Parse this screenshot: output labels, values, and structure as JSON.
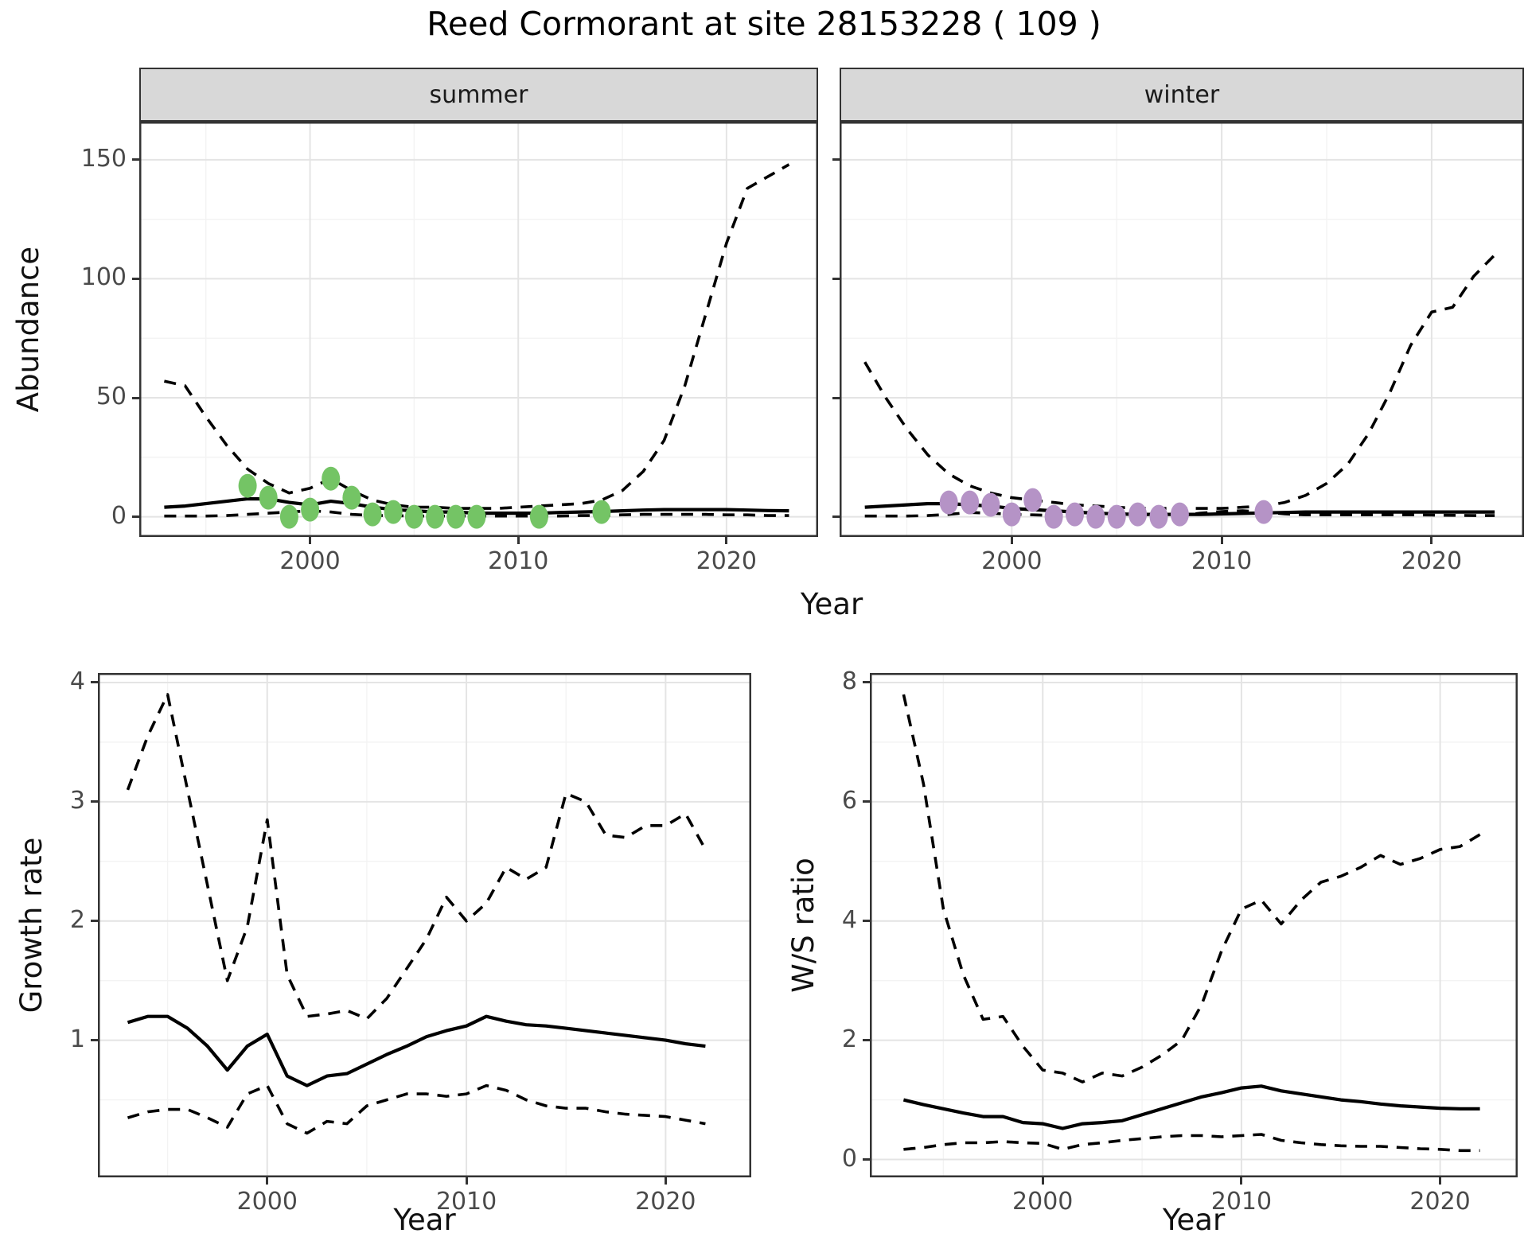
{
  "title": "Reed Cormorant at site 28153228 ( 109 )",
  "colors": {
    "summer_point": "#74c465",
    "winter_point": "#b593c6",
    "line": "#000000",
    "strip_background": "#d8d8d8",
    "grid_major": "#e4e4e4",
    "grid_minor": "#f3f3f3",
    "tick_label": "#4a4a4a",
    "panel_border": "#333333"
  },
  "chart_data": [
    {
      "id": "abundance_summer",
      "type": "line",
      "facet_label": "summer",
      "ylabel": "Abundance",
      "xlabel": "Year",
      "xlim": [
        1991.8,
        2024.4
      ],
      "ylim": [
        -8.5,
        166
      ],
      "xticks": [
        2000,
        2010,
        2020
      ],
      "xticks_minor": [
        1995,
        2005,
        2015
      ],
      "yticks": [
        0,
        50,
        100,
        150
      ],
      "yticks_minor": [
        25,
        75,
        125
      ],
      "show_ytick_labels": true,
      "grid": true,
      "legend": "none",
      "x": [
        1993,
        1994,
        1995,
        1996,
        1997,
        1998,
        1999,
        2000,
        2001,
        2002,
        2003,
        2004,
        2005,
        2006,
        2007,
        2008,
        2009,
        2010,
        2011,
        2012,
        2013,
        2014,
        2015,
        2016,
        2017,
        2018,
        2019,
        2020,
        2021,
        2022,
        2023
      ],
      "series": [
        {
          "name": "upper_ci",
          "style": "dashed",
          "values": [
            57,
            55,
            42,
            30,
            20,
            14,
            10,
            12,
            16,
            11,
            7,
            5,
            4,
            4,
            3.5,
            3.5,
            3.5,
            4,
            4.5,
            5,
            5.5,
            7,
            11,
            19,
            32,
            55,
            85,
            115,
            138,
            143,
            148
          ]
        },
        {
          "name": "median",
          "style": "solid",
          "values": [
            4,
            4.5,
            5.5,
            6.5,
            7.5,
            7.5,
            6,
            5,
            6.5,
            5.5,
            4,
            3,
            2.5,
            2,
            2,
            1.5,
            1.5,
            1.5,
            1.5,
            1.8,
            2,
            2.2,
            2.5,
            2.8,
            3,
            3,
            3,
            3,
            2.8,
            2.6,
            2.5
          ]
        },
        {
          "name": "lower_ci",
          "style": "dashed",
          "values": [
            0.3,
            0.3,
            0.3,
            0.5,
            1,
            1.5,
            2,
            2.5,
            2,
            1,
            0.5,
            0.5,
            0.3,
            0.3,
            0.3,
            0.3,
            0.3,
            0.3,
            0.3,
            0.3,
            0.5,
            0.5,
            0.8,
            1,
            1,
            1,
            1,
            0.8,
            0.8,
            0.5,
            0.5
          ]
        }
      ],
      "points": {
        "name": "observed_counts_summer",
        "color": "#74c465",
        "years": [
          1997,
          1998,
          1999,
          2000,
          2001,
          2002,
          2003,
          2004,
          2005,
          2006,
          2007,
          2008,
          2011,
          2014
        ],
        "values": [
          13,
          8,
          0,
          3,
          16,
          8,
          1,
          2,
          0,
          0,
          0,
          0,
          0,
          2
        ]
      }
    },
    {
      "id": "abundance_winter",
      "type": "line",
      "facet_label": "winter",
      "ylabel": "",
      "xlabel": "",
      "xlim": [
        1991.8,
        2024.4
      ],
      "ylim": [
        -8.5,
        166
      ],
      "xticks": [
        2000,
        2010,
        2020
      ],
      "xticks_minor": [
        1995,
        2005,
        2015
      ],
      "yticks": [
        0,
        50,
        100,
        150
      ],
      "yticks_minor": [
        25,
        75,
        125
      ],
      "show_ytick_labels": false,
      "grid": true,
      "legend": "none",
      "x": [
        1993,
        1994,
        1995,
        1996,
        1997,
        1998,
        1999,
        2000,
        2001,
        2002,
        2003,
        2004,
        2005,
        2006,
        2007,
        2008,
        2009,
        2010,
        2011,
        2012,
        2013,
        2014,
        2015,
        2016,
        2017,
        2018,
        2019,
        2020,
        2021,
        2022,
        2023
      ],
      "series": [
        {
          "name": "upper_ci",
          "style": "dashed",
          "values": [
            65,
            50,
            37,
            26,
            18,
            13,
            10,
            8,
            7,
            6,
            5,
            4.5,
            4,
            3.5,
            3.5,
            3.5,
            3.5,
            3.5,
            4,
            4.5,
            6,
            9,
            14,
            22,
            35,
            52,
            72,
            86,
            88,
            101,
            110
          ]
        },
        {
          "name": "median",
          "style": "solid",
          "values": [
            4,
            4.5,
            5,
            5.5,
            5.5,
            5,
            4.5,
            3.5,
            3,
            2.5,
            2,
            1.5,
            1.2,
            1,
            1,
            1,
            1,
            1.2,
            1.4,
            1.6,
            1.8,
            2,
            2,
            2,
            2,
            2,
            2,
            2,
            2,
            2,
            2
          ]
        },
        {
          "name": "lower_ci",
          "style": "dashed",
          "values": [
            0.3,
            0.3,
            0.3,
            0.5,
            1,
            1.8,
            1.5,
            1,
            0.8,
            0.5,
            0.3,
            0.3,
            0.3,
            0.3,
            0.3,
            0.5,
            1.5,
            2.2,
            2.5,
            2,
            1.2,
            0.8,
            0.8,
            0.8,
            0.8,
            0.8,
            0.8,
            0.7,
            0.6,
            0.5,
            0.5
          ]
        }
      ],
      "points": {
        "name": "observed_counts_winter",
        "color": "#b593c6",
        "years": [
          1997,
          1998,
          1999,
          2000,
          2001,
          2002,
          2003,
          2004,
          2005,
          2006,
          2007,
          2008,
          2012
        ],
        "values": [
          6,
          6,
          5,
          1,
          7,
          0,
          1,
          0,
          0,
          1,
          0,
          1,
          2
        ]
      }
    },
    {
      "id": "growth_rate",
      "type": "line",
      "facet_label": "",
      "ylabel": "Growth rate",
      "xlabel": "Year",
      "xlim": [
        1991.5,
        2024.3
      ],
      "ylim": [
        -0.15,
        4.08
      ],
      "xticks": [
        2000,
        2010,
        2020
      ],
      "xticks_minor": [
        1995,
        2005,
        2015
      ],
      "yticks": [
        1,
        2,
        3,
        4
      ],
      "yticks_minor": [
        0.5,
        1.5,
        2.5,
        3.5
      ],
      "show_ytick_labels": true,
      "grid": true,
      "legend": "none",
      "x": [
        1993,
        1994,
        1995,
        1996,
        1997,
        1998,
        1999,
        2000,
        2001,
        2002,
        2003,
        2004,
        2005,
        2006,
        2007,
        2008,
        2009,
        2010,
        2011,
        2012,
        2013,
        2014,
        2015,
        2016,
        2017,
        2018,
        2019,
        2020,
        2021,
        2022
      ],
      "series": [
        {
          "name": "upper_ci",
          "style": "dashed",
          "values": [
            3.1,
            3.55,
            3.9,
            3.1,
            2.3,
            1.5,
            1.95,
            2.85,
            1.55,
            1.2,
            1.22,
            1.25,
            1.18,
            1.35,
            1.6,
            1.85,
            2.2,
            2.0,
            2.15,
            2.45,
            2.35,
            2.45,
            3.07,
            3.0,
            2.72,
            2.7,
            2.8,
            2.8,
            2.9,
            2.6
          ]
        },
        {
          "name": "median",
          "style": "solid",
          "values": [
            1.15,
            1.2,
            1.2,
            1.1,
            0.95,
            0.75,
            0.95,
            1.05,
            0.7,
            0.62,
            0.7,
            0.72,
            0.8,
            0.88,
            0.95,
            1.03,
            1.08,
            1.12,
            1.2,
            1.16,
            1.13,
            1.12,
            1.1,
            1.08,
            1.06,
            1.04,
            1.02,
            1.0,
            0.97,
            0.95
          ]
        },
        {
          "name": "lower_ci",
          "style": "dashed",
          "values": [
            0.35,
            0.4,
            0.42,
            0.42,
            0.35,
            0.27,
            0.55,
            0.62,
            0.3,
            0.22,
            0.32,
            0.3,
            0.45,
            0.5,
            0.55,
            0.55,
            0.53,
            0.55,
            0.62,
            0.58,
            0.5,
            0.45,
            0.43,
            0.43,
            0.4,
            0.38,
            0.37,
            0.36,
            0.33,
            0.3
          ]
        }
      ]
    },
    {
      "id": "ws_ratio",
      "type": "line",
      "facet_label": "",
      "ylabel": "W/S ratio",
      "xlabel": "Year",
      "xlim": [
        1991.3,
        2023.9
      ],
      "ylim": [
        -0.3,
        8.16
      ],
      "xticks": [
        2000,
        2010,
        2020
      ],
      "xticks_minor": [
        1995,
        2005,
        2015
      ],
      "yticks": [
        0,
        2,
        4,
        6,
        8
      ],
      "yticks_minor": [
        1,
        3,
        5,
        7
      ],
      "show_ytick_labels": true,
      "grid": true,
      "legend": "none",
      "x": [
        1993,
        1994,
        1995,
        1996,
        1997,
        1998,
        1999,
        2000,
        2001,
        2002,
        2003,
        2004,
        2005,
        2006,
        2007,
        2008,
        2009,
        2010,
        2011,
        2012,
        2013,
        2014,
        2015,
        2016,
        2017,
        2018,
        2019,
        2020,
        2021,
        2022
      ],
      "series": [
        {
          "name": "upper_ci",
          "style": "dashed",
          "values": [
            7.8,
            6.3,
            4.2,
            3.1,
            2.35,
            2.4,
            1.9,
            1.5,
            1.45,
            1.3,
            1.45,
            1.4,
            1.55,
            1.75,
            2.0,
            2.6,
            3.5,
            4.2,
            4.35,
            3.95,
            4.35,
            4.65,
            4.75,
            4.9,
            5.1,
            4.95,
            5.05,
            5.2,
            5.25,
            5.45
          ]
        },
        {
          "name": "median",
          "style": "solid",
          "values": [
            1.0,
            0.92,
            0.85,
            0.78,
            0.72,
            0.72,
            0.62,
            0.6,
            0.52,
            0.6,
            0.62,
            0.65,
            0.75,
            0.85,
            0.95,
            1.05,
            1.12,
            1.2,
            1.23,
            1.15,
            1.1,
            1.05,
            1.0,
            0.97,
            0.93,
            0.9,
            0.88,
            0.86,
            0.85,
            0.85
          ]
        },
        {
          "name": "lower_ci",
          "style": "dashed",
          "values": [
            0.17,
            0.2,
            0.25,
            0.28,
            0.28,
            0.3,
            0.28,
            0.27,
            0.17,
            0.25,
            0.28,
            0.32,
            0.35,
            0.38,
            0.4,
            0.4,
            0.38,
            0.4,
            0.42,
            0.32,
            0.28,
            0.25,
            0.23,
            0.22,
            0.22,
            0.2,
            0.18,
            0.17,
            0.15,
            0.15
          ]
        }
      ]
    }
  ]
}
